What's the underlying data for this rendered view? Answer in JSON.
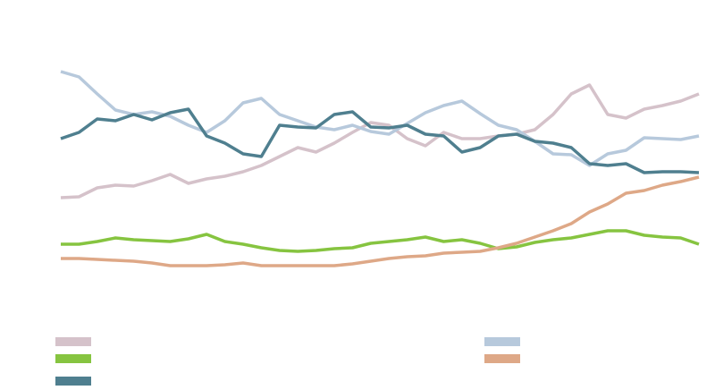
{
  "chart_data": {
    "type": "line",
    "ylim": [
      0,
      400
    ],
    "series": [
      {
        "color": "#d5c2ca",
        "values": [
          179,
          180,
          190,
          193,
          192,
          198,
          205,
          195,
          200,
          203,
          208,
          215,
          225,
          235,
          230,
          240,
          252,
          263,
          260,
          245,
          237,
          252,
          245,
          245,
          248,
          250,
          255,
          272,
          295,
          305,
          272,
          268,
          278,
          282,
          287,
          295
        ]
      },
      {
        "color": "#b7c9dc",
        "values": [
          320,
          314,
          295,
          277,
          272,
          275,
          270,
          260,
          252,
          265,
          285,
          290,
          272,
          265,
          258,
          255,
          260,
          253,
          250,
          262,
          274,
          282,
          287,
          273,
          260,
          255,
          242,
          228,
          227,
          215,
          228,
          232,
          246,
          245,
          244,
          248
        ]
      },
      {
        "color": "#86c440",
        "values": [
          127,
          127,
          130,
          134,
          132,
          131,
          130,
          133,
          138,
          130,
          127,
          123,
          120,
          119,
          120,
          122,
          123,
          128,
          130,
          132,
          135,
          130,
          132,
          128,
          122,
          124,
          129,
          132,
          134,
          138,
          142,
          142,
          137,
          135,
          134,
          127
        ]
      },
      {
        "color": "#dea887",
        "values": [
          111,
          111,
          110,
          109,
          108,
          106,
          103,
          103,
          103,
          104,
          106,
          103,
          103,
          103,
          103,
          103,
          105,
          108,
          111,
          113,
          114,
          117,
          118,
          119,
          123,
          128,
          135,
          142,
          150,
          163,
          172,
          184,
          187,
          193,
          197,
          202
        ]
      },
      {
        "color": "#4f7f8f",
        "values": [
          245,
          252,
          267,
          265,
          272,
          266,
          274,
          278,
          248,
          240,
          228,
          225,
          260,
          258,
          257,
          272,
          275,
          258,
          257,
          260,
          250,
          248,
          230,
          235,
          248,
          250,
          242,
          240,
          235,
          217,
          215,
          217,
          207,
          208,
          208,
          207
        ]
      }
    ]
  }
}
